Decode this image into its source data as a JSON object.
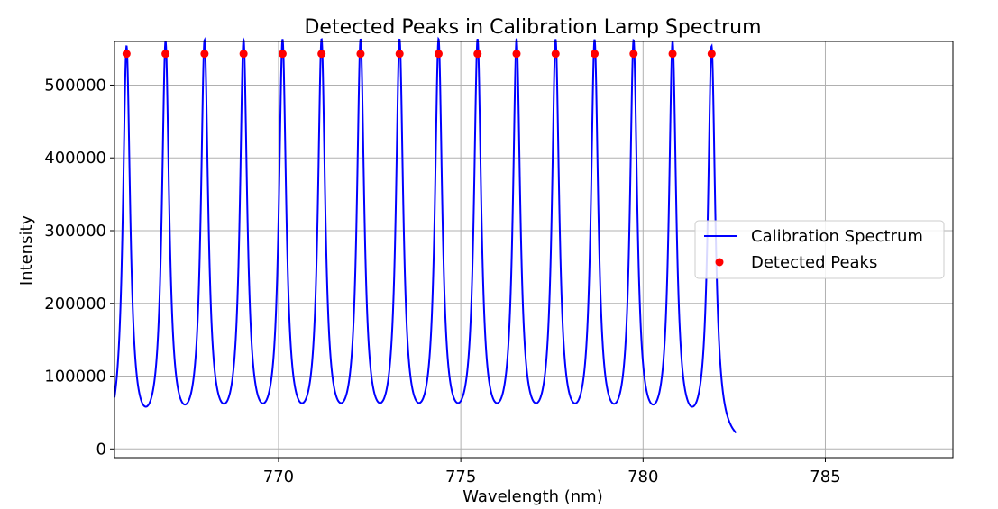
{
  "chart_data": {
    "type": "line",
    "title": "Detected Peaks in Calibration Lamp Spectrum",
    "xlabel": "Wavelength (nm)",
    "ylabel": "Intensity",
    "xlim": [
      765.5,
      788.5
    ],
    "ylim": [
      -12000,
      560000
    ],
    "x_ticks": [
      770,
      775,
      780,
      785
    ],
    "x_tick_labels": [
      "770",
      "775",
      "780",
      "785"
    ],
    "y_ticks": [
      0,
      100000,
      200000,
      300000,
      400000,
      500000
    ],
    "y_tick_labels": [
      "0",
      "100000",
      "200000",
      "300000",
      "400000",
      "500000"
    ],
    "grid": true,
    "legend_position": "center-right",
    "series": [
      {
        "name": "Calibration Spectrum",
        "kind": "line",
        "color": "#0000ff",
        "x_range": [
          765.5,
          782.55
        ],
        "peak_x": [
          765.83,
          766.9,
          767.97,
          769.04,
          770.11,
          771.18,
          772.25,
          773.32,
          774.39,
          775.46,
          776.53,
          777.6,
          778.67,
          779.74,
          780.81,
          781.88
        ],
        "peak_value": 543000,
        "line_width_nm": 0.12
      },
      {
        "name": "Detected Peaks",
        "kind": "scatter",
        "color": "#ff0000",
        "x": [
          765.83,
          766.9,
          767.97,
          769.04,
          770.11,
          771.18,
          772.25,
          773.32,
          774.39,
          775.46,
          776.53,
          777.6,
          778.67,
          779.74,
          780.81,
          781.88
        ],
        "y": [
          543000,
          543000,
          543000,
          543000,
          543000,
          543000,
          543000,
          543000,
          543000,
          543000,
          543000,
          543000,
          543000,
          543000,
          543000,
          543000
        ]
      }
    ]
  }
}
